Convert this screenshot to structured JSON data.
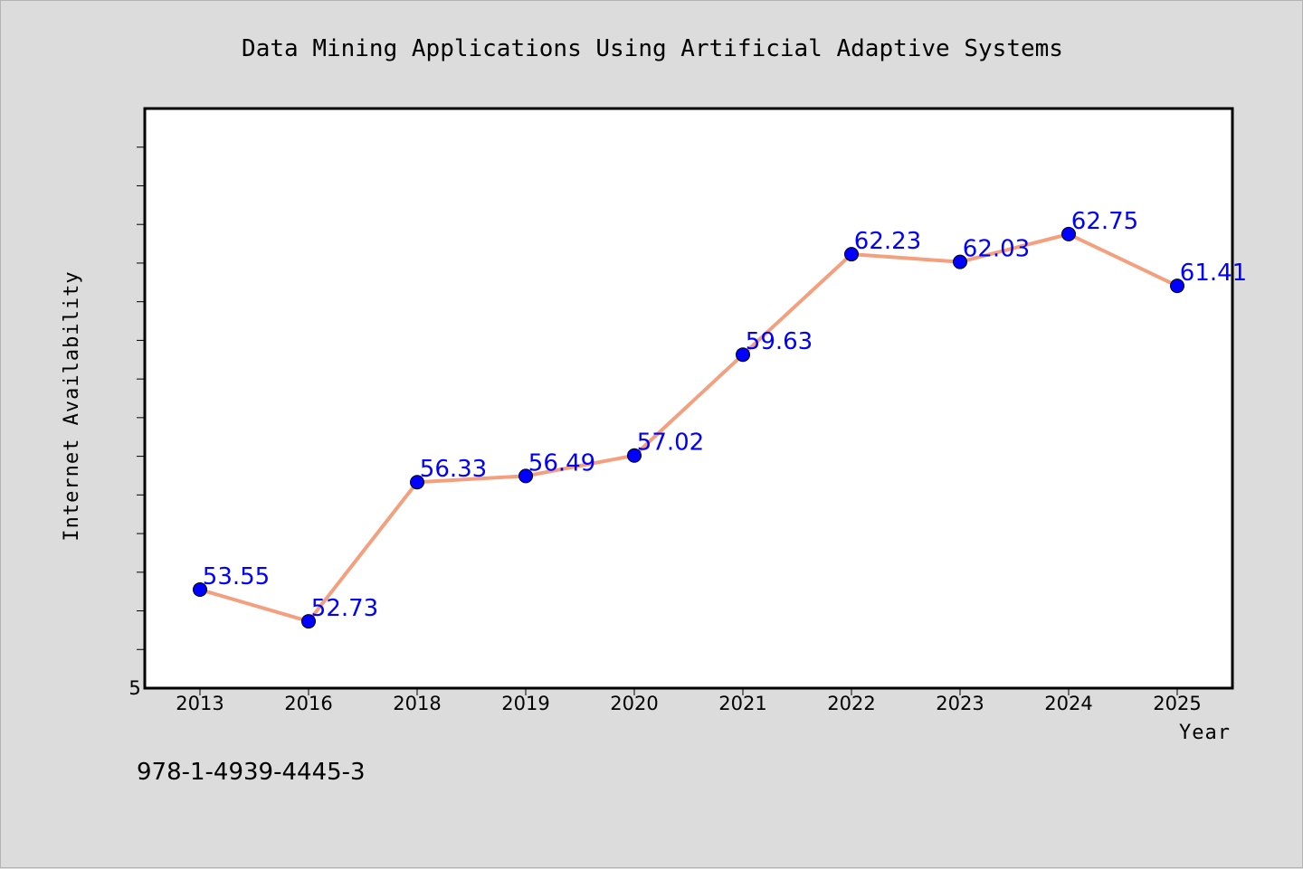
{
  "chart_data": {
    "type": "line",
    "title": "Data Mining Applications Using Artificial Adaptive Systems",
    "xlabel": "Year",
    "ylabel": "Internet Availability",
    "categories": [
      "2013",
      "2016",
      "2018",
      "2019",
      "2020",
      "2021",
      "2022",
      "2023",
      "2024",
      "2025"
    ],
    "series": [
      {
        "values": [
          53.55,
          52.73,
          56.33,
          56.49,
          57.02,
          59.63,
          62.23,
          62.03,
          62.75,
          61.41
        ],
        "labels": [
          "53.55",
          "52.73",
          "56.33",
          "56.49",
          "57.02",
          "59.63",
          "62.23",
          "62.03",
          "62.75",
          "61.41"
        ],
        "line_color": "#f4a07f",
        "marker_color": "#0000ff"
      }
    ],
    "ylim": [
      51.0,
      66.0
    ],
    "y_tick_labels": [
      "5"
    ],
    "grid": false,
    "legend": false,
    "background": "#ffffff",
    "figure_background": "#dcdcdc"
  },
  "footer": {
    "isbn": "978-1-4939-4445-3"
  }
}
